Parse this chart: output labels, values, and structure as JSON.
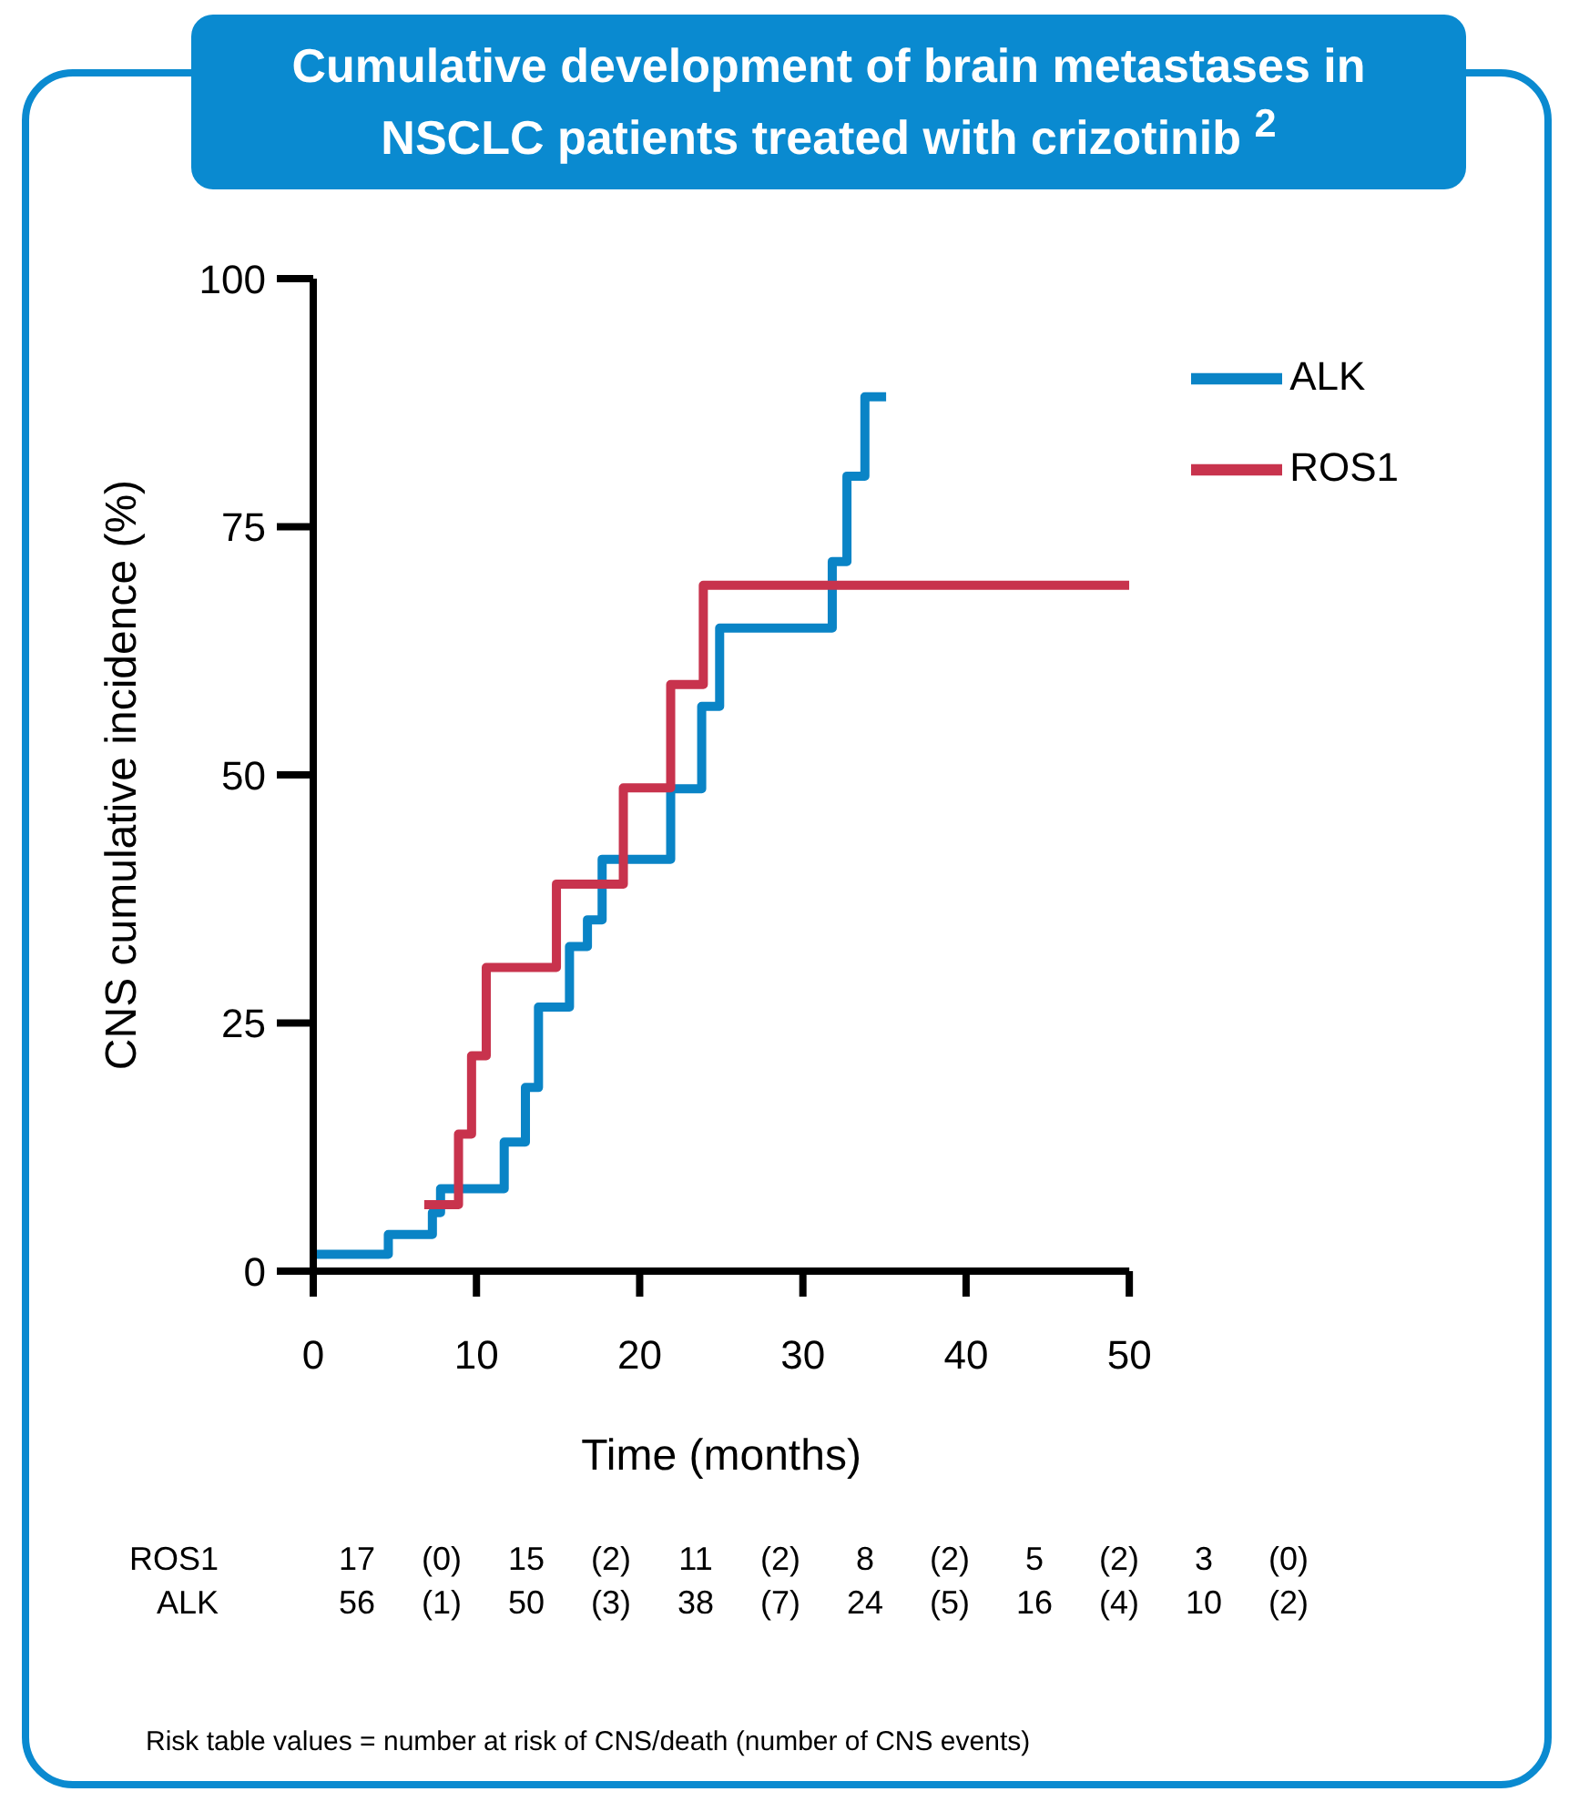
{
  "chart_data": {
    "type": "step",
    "title": "Cumulative development of brain metastases in NSCLC patients treated with crizotinib $^{2}$",
    "xlabel": "Time (months)",
    "ylabel": "CNS cumulative incidence (%)",
    "xlim": [
      0,
      50
    ],
    "xticks": [
      0,
      10,
      20,
      30,
      40,
      50
    ],
    "ylim": [
      0,
      100
    ],
    "yticks": [
      0,
      25,
      50,
      75,
      100
    ],
    "grid": false,
    "legend": "top right",
    "marker": "none",
    "line_style": "solid",
    "series": [
      {
        "name": "ALK",
        "color": "#0a84c6",
        "x": [
          0,
          4.6,
          7.3,
          7.8,
          11.7,
          13.0,
          13.8,
          15.7,
          16.8,
          17.7,
          21.9,
          23.8,
          24.9,
          31.8,
          32.7,
          33.8,
          35.1
        ],
        "values": [
          1.7,
          3.7,
          5.9,
          8.3,
          13.0,
          18.5,
          26.6,
          32.7,
          35.4,
          41.5,
          48.6,
          56.9,
          64.8,
          71.5,
          80.1,
          88.1,
          88.1
        ]
      },
      {
        "name": "ROS1",
        "color": "#c8334d",
        "x": [
          6.8,
          8.9,
          9.7,
          10.6,
          14.9,
          19.0,
          21.9,
          23.9,
          50
        ],
        "values": [
          6.7,
          13.8,
          21.7,
          30.6,
          39.0,
          48.7,
          59.1,
          69.1,
          69.1
        ]
      }
    ],
    "annotations": [
      "ROS1",
      "17",
      "(0)",
      "15",
      "(2)",
      "11",
      "(2)",
      "8",
      "(2)",
      "5",
      "(2)",
      "3",
      "(0)",
      "ALK",
      "56",
      "(1)",
      "50",
      "(3)",
      "38",
      "(7)",
      "24",
      "(5)",
      "16",
      "(4)",
      "10",
      "(2)",
      "Risk table values = number at risk of CNS/death (number of CNS events)"
    ]
  }
}
